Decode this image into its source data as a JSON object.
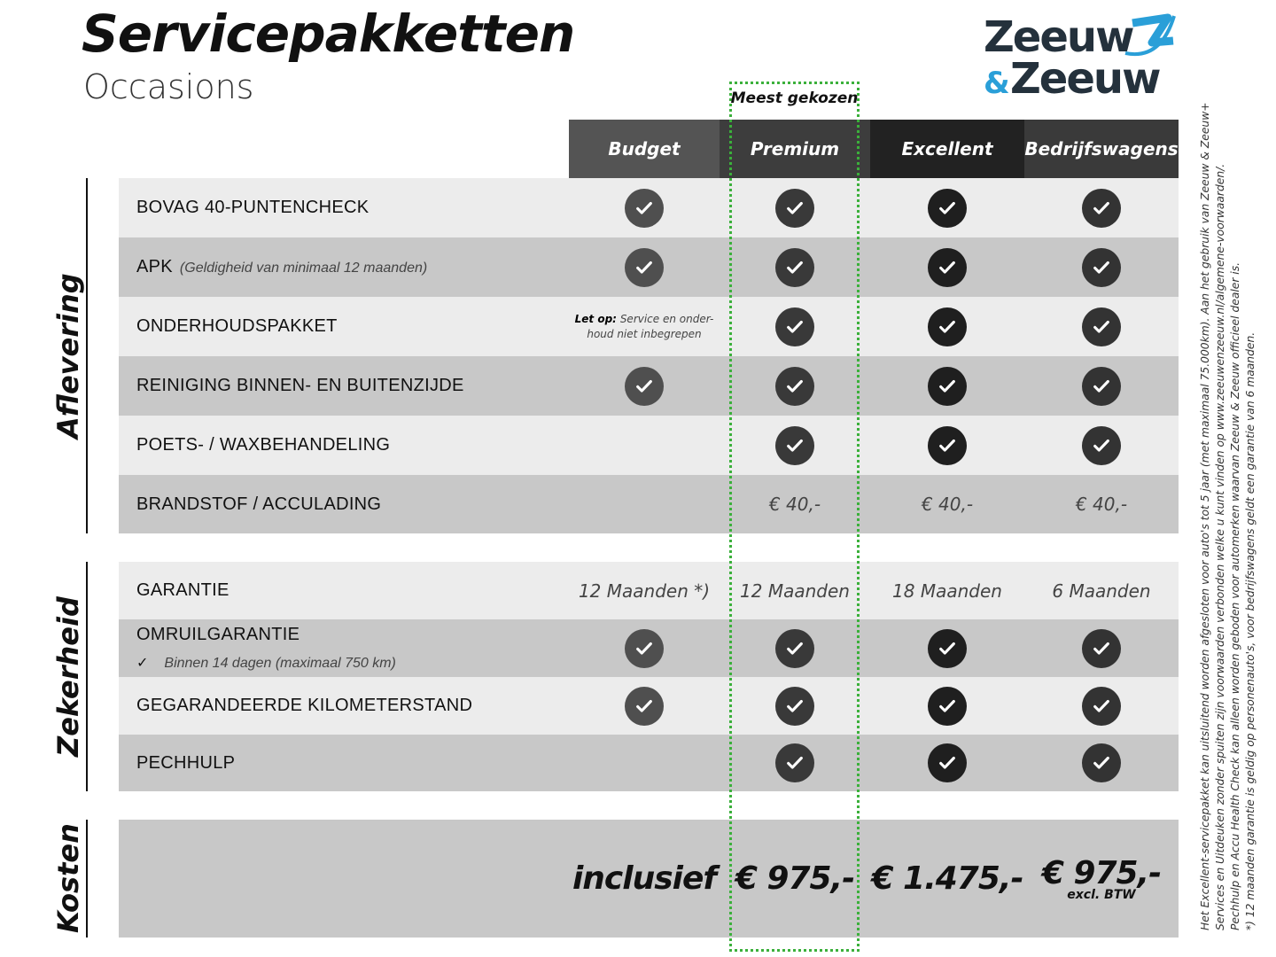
{
  "title": "Servicepakketten",
  "subtitle": "Occasions",
  "logo": {
    "line1": "Zeeuw",
    "line2": "Zeeuw",
    "amp": "&",
    "colors": {
      "dark": "#24313c",
      "blue": "#2a9fd8"
    }
  },
  "popular_label": "Meest gekozen",
  "popular_color": "#3bb03b",
  "columns": [
    "Budget",
    "Premium",
    "Excellent",
    "Bedrijfswagens"
  ],
  "sections": {
    "aflevering": "Aflevering",
    "zekerheid": "Zekerheid",
    "kosten": "Kosten"
  },
  "rows": [
    {
      "label": "BOVAG 40-PUNTENCHECK",
      "values": [
        "check",
        "check",
        "check",
        "check"
      ]
    },
    {
      "label": "APK",
      "note": "(Geldigheid van minimaal 12 maanden)",
      "values": [
        "check",
        "check",
        "check",
        "check"
      ]
    },
    {
      "label": "ONDERHOUDSPAKKET",
      "budget_note_bold": "Let op:",
      "budget_note": "Service en onder-houd niet inbegrepen",
      "values": [
        "note",
        "check",
        "check",
        "check"
      ]
    },
    {
      "label": "REINIGING BINNEN- EN BUITENZIJDE",
      "values": [
        "check",
        "check",
        "check",
        "check"
      ]
    },
    {
      "label": "POETS- / WAXBEHANDELING",
      "values": [
        "",
        "check",
        "check",
        "check"
      ]
    },
    {
      "label": "BRANDSTOF / ACCULADING",
      "values": [
        "",
        "€ 40,-",
        "€ 40,-",
        "€ 40,-"
      ]
    },
    {
      "label": "GARANTIE",
      "values": [
        "12 Maanden *)",
        "12 Maanden",
        "18 Maanden",
        "6 Maanden"
      ]
    },
    {
      "label": "OMRUILGARANTIE",
      "sub": "Binnen 14 dagen (maximaal 750 km)",
      "sub_icon": "✓",
      "values": [
        "check",
        "check",
        "check",
        "check"
      ]
    },
    {
      "label": "GEGARANDEERDE KILOMETERSTAND",
      "values": [
        "check",
        "check",
        "check",
        "check"
      ]
    },
    {
      "label": "PECHHULP",
      "values": [
        "",
        "check",
        "check",
        "check"
      ]
    }
  ],
  "costs": {
    "values": [
      "inclusief",
      "€ 975,-",
      "€ 1.475,-",
      "€ 975,-"
    ],
    "bedrijf_note": "excl. BTW"
  },
  "footnotes": [
    "Het Excellent-servicepakket kan uitsluitend worden afgesloten voor auto's tot 5 jaar (met maximaal 75.000km). Aan het gebruik van Zeeuw & Zeeuw+",
    "Services en Uitdeuken zonder spuiten zijn voorwaarden verbonden welke u kunt vinden op www.zeeuwenzeeuw.nl/algemene-voorwaarden/.",
    "Pechhulp en Accu Health Check kan alleen worden geboden voor automerken waarvan Zeeuw & Zeeuw officieel dealer is.",
    "*) 12 maanden garantie is geldig op personenauto's, voor bedrijfswagens geldt een garantie van 6 maanden."
  ]
}
